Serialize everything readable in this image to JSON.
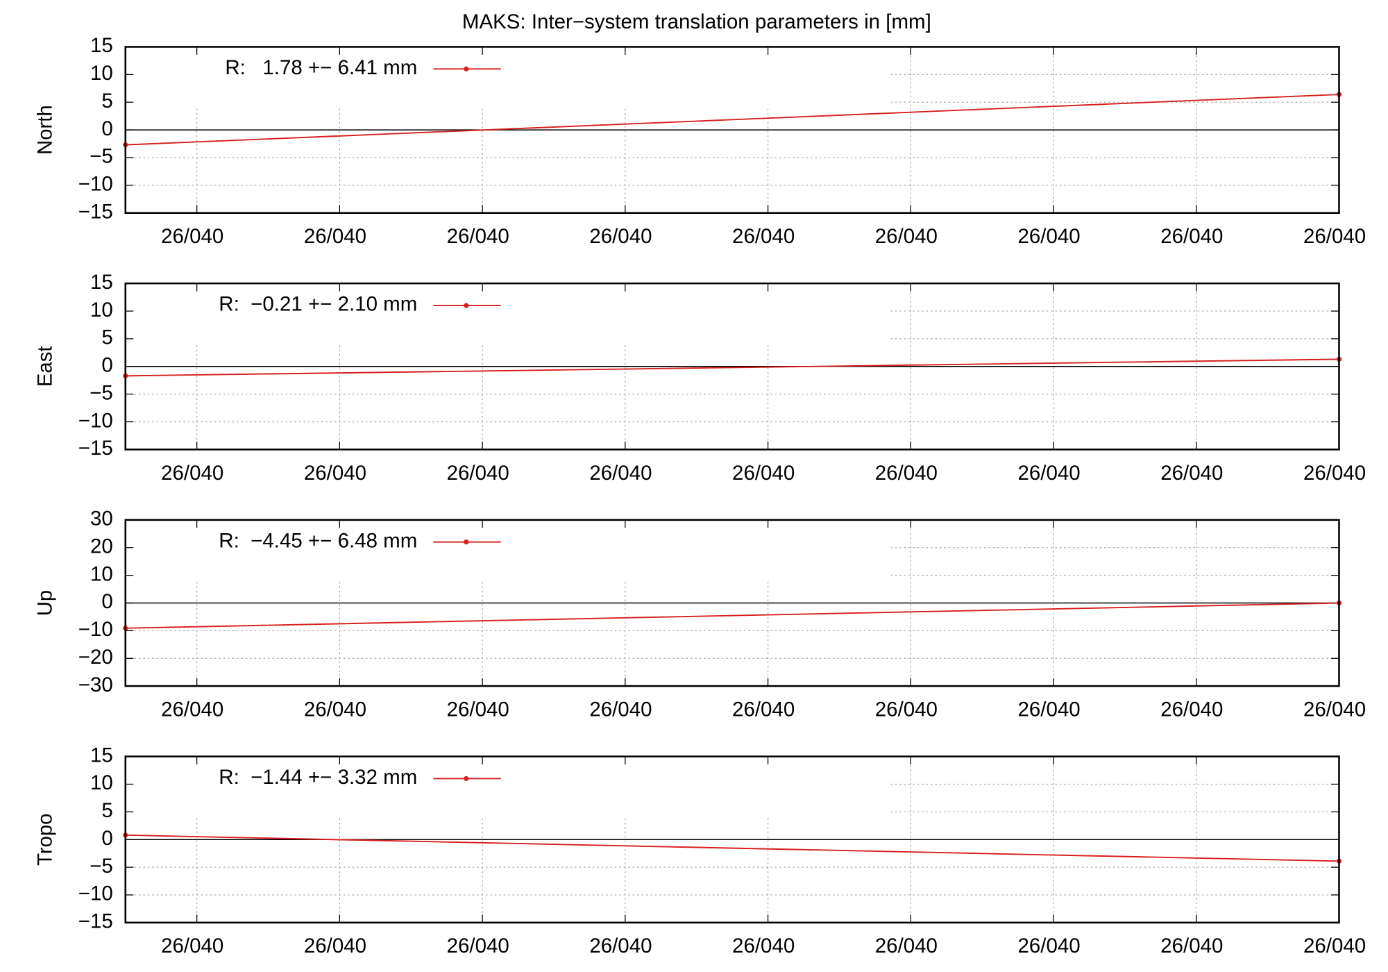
{
  "title": "MAKS: Inter−system translation parameters in [mm]",
  "chart_data": [
    {
      "type": "line",
      "ylabel": "North",
      "legend": "top-left",
      "grid": true,
      "zeroline": true,
      "x": [
        0,
        8.5
      ],
      "xlim": [
        0,
        8.5
      ],
      "xticks": [
        {
          "value": 0.5,
          "label": "26/040"
        },
        {
          "value": 1.5,
          "label": "26/040"
        },
        {
          "value": 2.5,
          "label": "26/040"
        },
        {
          "value": 3.5,
          "label": "26/040"
        },
        {
          "value": 4.5,
          "label": "26/040"
        },
        {
          "value": 5.5,
          "label": "26/040"
        },
        {
          "value": 6.5,
          "label": "26/040"
        },
        {
          "value": 7.5,
          "label": "26/040"
        },
        {
          "value": 8.5,
          "label": "26/040"
        }
      ],
      "ylim": [
        -15,
        15
      ],
      "yticks": [
        15,
        10,
        5,
        0,
        {
          "value": -5,
          "label": "−5"
        },
        {
          "value": -10,
          "label": "−10"
        },
        {
          "value": -15,
          "label": "−15"
        }
      ],
      "series": [
        {
          "name": "R:   1.78 +− 6.41 mm",
          "color": "#d81e1e",
          "values": [
            -2.7,
            6.4
          ]
        }
      ]
    },
    {
      "type": "line",
      "ylabel": "East",
      "legend": "top-left",
      "grid": true,
      "zeroline": true,
      "x": [
        0,
        8.5
      ],
      "xlim": [
        0,
        8.5
      ],
      "xticks": [
        {
          "value": 0.5,
          "label": "26/040"
        },
        {
          "value": 1.5,
          "label": "26/040"
        },
        {
          "value": 2.5,
          "label": "26/040"
        },
        {
          "value": 3.5,
          "label": "26/040"
        },
        {
          "value": 4.5,
          "label": "26/040"
        },
        {
          "value": 5.5,
          "label": "26/040"
        },
        {
          "value": 6.5,
          "label": "26/040"
        },
        {
          "value": 7.5,
          "label": "26/040"
        },
        {
          "value": 8.5,
          "label": "26/040"
        }
      ],
      "ylim": [
        -15,
        15
      ],
      "yticks": [
        15,
        10,
        5,
        0,
        {
          "value": -5,
          "label": "−5"
        },
        {
          "value": -10,
          "label": "−10"
        },
        {
          "value": -15,
          "label": "−15"
        }
      ],
      "series": [
        {
          "name": "R:  −0.21 +− 2.10 mm",
          "color": "#d81e1e",
          "values": [
            -1.7,
            1.3
          ]
        }
      ]
    },
    {
      "type": "line",
      "ylabel": "Up",
      "legend": "top-left",
      "grid": true,
      "zeroline": true,
      "x": [
        0,
        8.5
      ],
      "xlim": [
        0,
        8.5
      ],
      "xticks": [
        {
          "value": 0.5,
          "label": "26/040"
        },
        {
          "value": 1.5,
          "label": "26/040"
        },
        {
          "value": 2.5,
          "label": "26/040"
        },
        {
          "value": 3.5,
          "label": "26/040"
        },
        {
          "value": 4.5,
          "label": "26/040"
        },
        {
          "value": 5.5,
          "label": "26/040"
        },
        {
          "value": 6.5,
          "label": "26/040"
        },
        {
          "value": 7.5,
          "label": "26/040"
        },
        {
          "value": 8.5,
          "label": "26/040"
        }
      ],
      "ylim": [
        -30,
        30
      ],
      "yticks": [
        30,
        20,
        10,
        0,
        {
          "value": -10,
          "label": "−10"
        },
        {
          "value": -20,
          "label": "−20"
        },
        {
          "value": -30,
          "label": "−30"
        }
      ],
      "series": [
        {
          "name": "R:  −4.45 +− 6.48 mm",
          "color": "#d81e1e",
          "values": [
            -9.1,
            0
          ]
        }
      ]
    },
    {
      "type": "line",
      "ylabel": "Tropo",
      "legend": "top-left",
      "grid": true,
      "zeroline": true,
      "x": [
        0,
        8.5
      ],
      "xlim": [
        0,
        8.5
      ],
      "xticks": [
        {
          "value": 0.5,
          "label": "26/040"
        },
        {
          "value": 1.5,
          "label": "26/040"
        },
        {
          "value": 2.5,
          "label": "26/040"
        },
        {
          "value": 3.5,
          "label": "26/040"
        },
        {
          "value": 4.5,
          "label": "26/040"
        },
        {
          "value": 5.5,
          "label": "26/040"
        },
        {
          "value": 6.5,
          "label": "26/040"
        },
        {
          "value": 7.5,
          "label": "26/040"
        },
        {
          "value": 8.5,
          "label": "26/040"
        }
      ],
      "ylim": [
        -15,
        15
      ],
      "yticks": [
        15,
        10,
        5,
        0,
        {
          "value": -5,
          "label": "−5"
        },
        {
          "value": -10,
          "label": "−10"
        },
        {
          "value": -15,
          "label": "−15"
        }
      ],
      "series": [
        {
          "name": "R:  −1.44 +− 3.32 mm",
          "color": "#d81e1e",
          "values": [
            0.8,
            -3.9
          ]
        }
      ]
    }
  ]
}
